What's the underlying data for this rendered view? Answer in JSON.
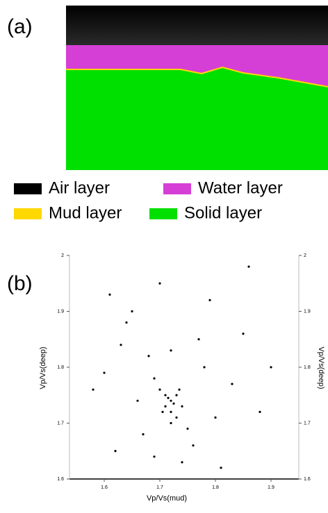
{
  "panel_a": {
    "label": "(a)",
    "legend": [
      {
        "name": "Air layer",
        "color": "#000000"
      },
      {
        "name": "Water layer",
        "color": "#d63fd6"
      },
      {
        "name": "Mud layer",
        "color": "#ffd800"
      },
      {
        "name": "Solid layer",
        "color": "#00e000"
      }
    ]
  },
  "chart_data": {
    "type": "scatter",
    "panel_label": "(b)",
    "x_label": "Vp/Vs(mud)",
    "y_label": "Vp/Vs(deep)",
    "color": "#000000",
    "x": [
      1.72,
      1.71,
      1.73,
      1.72,
      1.715,
      1.725,
      1.7,
      1.74,
      1.73,
      1.71,
      1.72,
      1.705,
      1.735,
      1.69,
      1.75,
      1.68,
      1.76,
      1.66,
      1.78,
      1.64,
      1.8,
      1.62,
      1.83,
      1.65,
      1.77,
      1.6,
      1.85,
      1.7,
      1.74,
      1.67,
      1.79,
      1.63,
      1.86,
      1.58,
      1.88,
      1.72,
      1.69,
      1.81,
      1.61,
      1.9
    ],
    "values": [
      1.74,
      1.73,
      1.75,
      1.72,
      1.745,
      1.735,
      1.76,
      1.73,
      1.71,
      1.75,
      1.7,
      1.72,
      1.76,
      1.78,
      1.69,
      1.82,
      1.66,
      1.74,
      1.8,
      1.88,
      1.71,
      1.65,
      1.77,
      1.9,
      1.85,
      1.79,
      1.86,
      1.95,
      1.63,
      1.68,
      1.92,
      1.84,
      1.98,
      1.76,
      1.72,
      1.83,
      1.64,
      1.62,
      1.93,
      1.8
    ],
    "xlim": [
      1.5375,
      1.95
    ],
    "xticks": [
      1.6,
      1.7,
      1.8,
      1.9
    ],
    "ylim": [
      1.6,
      2.0
    ],
    "yticks": [
      1.6,
      1.7,
      1.8,
      1.9,
      2.0
    ]
  }
}
